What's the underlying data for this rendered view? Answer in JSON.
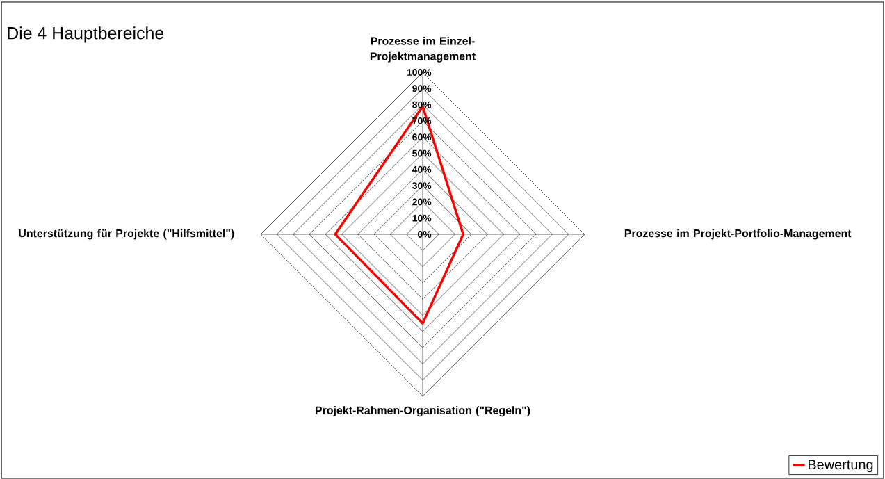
{
  "chart_data": {
    "type": "radar",
    "title": "Die 4 Hauptbereiche",
    "categories": [
      "Prozesse im Einzel-Projektmanagement",
      "Prozesse im Projekt-Portfolio-Management",
      "Projekt-Rahmen-Organisation (\"Regeln\")",
      "Unterstützung für Projekte (\"Hilfsmittel\")"
    ],
    "series": [
      {
        "name": "Bewertung",
        "color": "#ff0000",
        "values": [
          0.79,
          0.25,
          0.55,
          0.54
        ]
      }
    ],
    "ylim": [
      0,
      1
    ],
    "yticks": [
      {
        "value": 0,
        "label": "0%"
      },
      {
        "value": 0.1,
        "label": "10%"
      },
      {
        "value": 0.2,
        "label": "20%"
      },
      {
        "value": 0.3,
        "label": "30%"
      },
      {
        "value": 0.4,
        "label": "40%"
      },
      {
        "value": 0.5,
        "label": "50%"
      },
      {
        "value": 0.6,
        "label": "60%"
      },
      {
        "value": 0.7,
        "label": "70%"
      },
      {
        "value": 0.8,
        "label": "80%"
      },
      {
        "value": 0.9,
        "label": "90%"
      },
      {
        "value": 1,
        "label": "100%"
      }
    ],
    "grid": true,
    "legend": "bottom right"
  }
}
